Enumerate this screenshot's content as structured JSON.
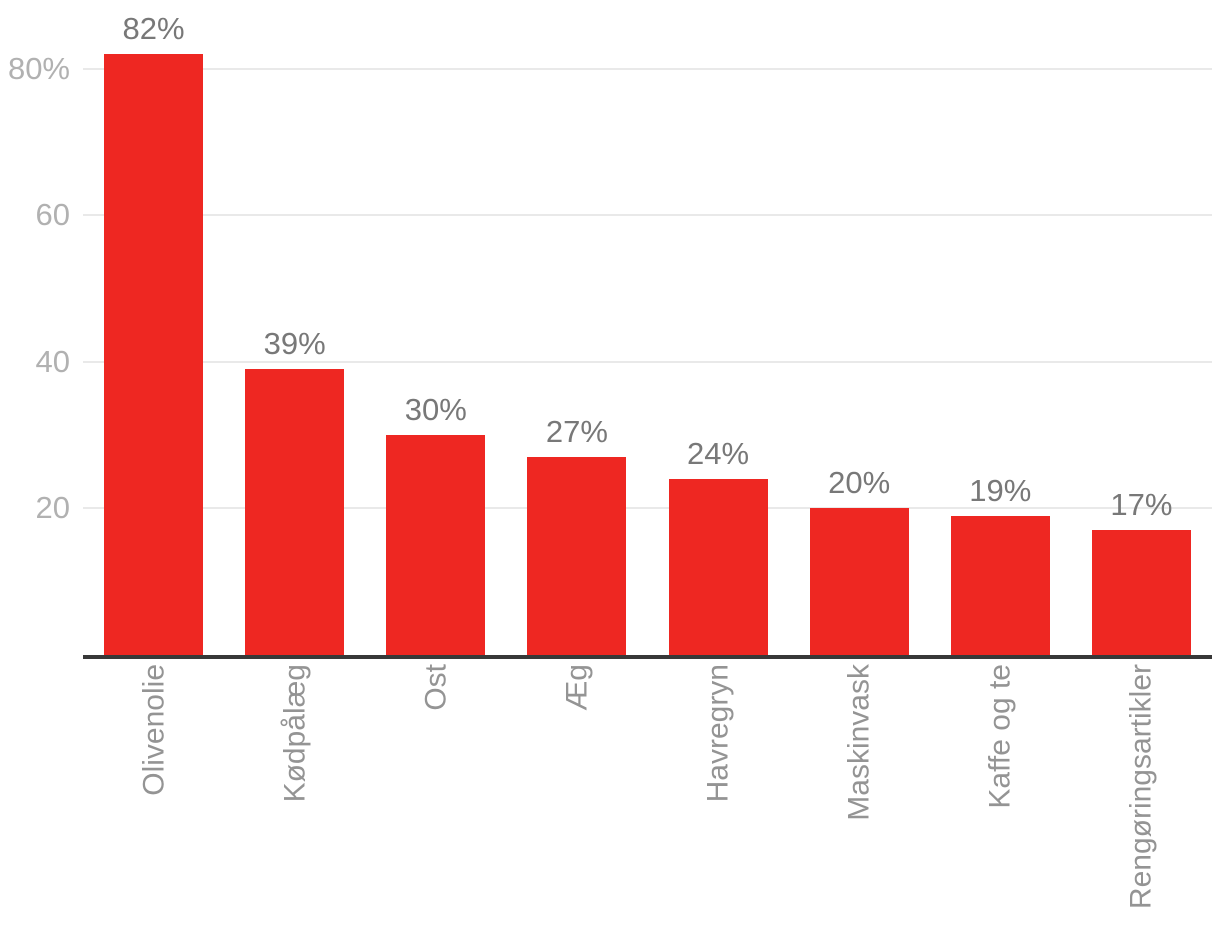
{
  "chart_data": {
    "type": "bar",
    "title": "",
    "categories": [
      "Olivenolie",
      "Kødpålæg",
      "Ost",
      "Æg",
      "Havregryn",
      "Maskinvask",
      "Kaffe og te",
      "Rengøringsartikler"
    ],
    "values": [
      82,
      39,
      30,
      27,
      24,
      20,
      19,
      17
    ],
    "bar_labels": [
      "82%",
      "39%",
      "30%",
      "27%",
      "24%",
      "20%",
      "19%",
      "17%"
    ],
    "y_ticks": [
      {
        "value": 80,
        "label": "80%"
      },
      {
        "value": 60,
        "label": "60"
      },
      {
        "value": 40,
        "label": "40"
      },
      {
        "value": 20,
        "label": "20"
      }
    ],
    "xlabel": "",
    "ylabel": "",
    "ylim": [
      0,
      90
    ],
    "grid": "horizontal",
    "legend": "none",
    "colors": {
      "bar": "#ee2722",
      "value_label": "#787878",
      "y_tick_label": "#b1b1b1",
      "category_label": "#949494",
      "gridline": "#e9e9e9",
      "axis_line": "#383838",
      "background": "#ffffff"
    }
  }
}
